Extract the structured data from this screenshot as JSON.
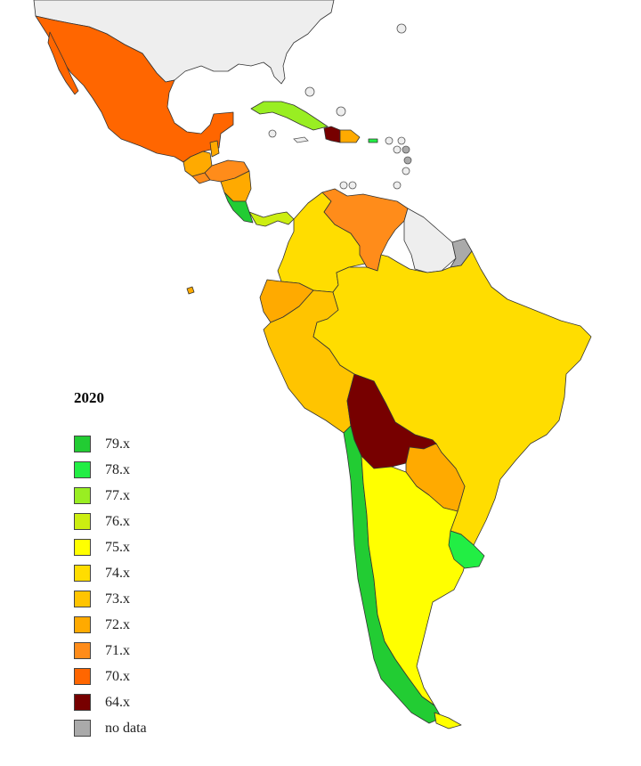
{
  "legend": {
    "title": "2020",
    "items": [
      {
        "label": "79.x",
        "color": "#22cc33"
      },
      {
        "label": "78.x",
        "color": "#22ee44"
      },
      {
        "label": "77.x",
        "color": "#99ee22"
      },
      {
        "label": "76.x",
        "color": "#ccee11"
      },
      {
        "label": "75.x",
        "color": "#ffff00"
      },
      {
        "label": "74.x",
        "color": "#ffdd00"
      },
      {
        "label": "73.x",
        "color": "#ffc400"
      },
      {
        "label": "72.x",
        "color": "#ffaa00"
      },
      {
        "label": "71.x",
        "color": "#ff8c1a"
      },
      {
        "label": "70.x",
        "color": "#ff6600"
      },
      {
        "label": "64.x",
        "color": "#770000"
      },
      {
        "label": "no data",
        "color": "#aaaaaa"
      }
    ]
  },
  "colors": {
    "non_region": "#eeeeee",
    "island_marker": "#eeeeee",
    "border": "#333333"
  },
  "regions": [
    {
      "name": "Mexico",
      "category": "70.x"
    },
    {
      "name": "Guatemala",
      "category": "72.x"
    },
    {
      "name": "Honduras",
      "category": "71.x"
    },
    {
      "name": "El Salvador",
      "category": "71.x"
    },
    {
      "name": "Nicaragua",
      "category": "72.x"
    },
    {
      "name": "Costa Rica",
      "category": "79.x"
    },
    {
      "name": "Panama",
      "category": "76.x"
    },
    {
      "name": "Cuba",
      "category": "77.x"
    },
    {
      "name": "Haiti",
      "category": "64.x"
    },
    {
      "name": "Dominican Republic",
      "category": "72.x"
    },
    {
      "name": "Puerto Rico",
      "category": "78.x"
    },
    {
      "name": "Colombia",
      "category": "74.x"
    },
    {
      "name": "Venezuela",
      "category": "71.x"
    },
    {
      "name": "Ecuador",
      "category": "72.x"
    },
    {
      "name": "Peru",
      "category": "73.x"
    },
    {
      "name": "Brazil",
      "category": "74.x"
    },
    {
      "name": "Bolivia",
      "category": "64.x"
    },
    {
      "name": "Paraguay",
      "category": "72.x"
    },
    {
      "name": "Chile",
      "category": "79.x"
    },
    {
      "name": "Argentina",
      "category": "75.x"
    },
    {
      "name": "Uruguay",
      "category": "78.x"
    },
    {
      "name": "French Guiana",
      "category": "no data"
    }
  ]
}
